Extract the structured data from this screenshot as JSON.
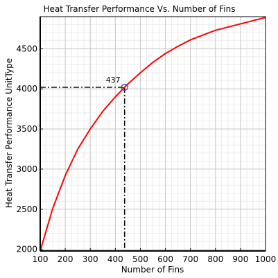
{
  "chart_data": {
    "type": "line",
    "title": "Heat Transfer Performance Vs. Number of Fins",
    "xlabel": "Number of Fins",
    "ylabel": "Heat Transfer Performance UnitType",
    "xlim": [
      100,
      1000
    ],
    "ylim": [
      1980,
      4900
    ],
    "xticks": [
      100,
      200,
      300,
      400,
      500,
      600,
      700,
      800,
      900,
      1000
    ],
    "yticks": [
      2000,
      2500,
      3000,
      3500,
      4000,
      4500
    ],
    "grid": true,
    "series": [
      {
        "color": "#ff0000",
        "x": [
          100,
          150,
          200,
          250,
          300,
          350,
          400,
          437,
          450,
          500,
          550,
          600,
          650,
          700,
          750,
          800,
          850,
          900,
          950,
          1000
        ],
        "y": [
          1980,
          2510,
          2920,
          3250,
          3500,
          3720,
          3900,
          4020,
          4060,
          4200,
          4330,
          4440,
          4530,
          4610,
          4670,
          4730,
          4770,
          4810,
          4850,
          4890
        ]
      }
    ],
    "marker": {
      "x": 437,
      "y": 4020,
      "color": "#3333cc"
    },
    "annotation": {
      "text": "437",
      "x": 437,
      "y": 4020
    },
    "reference_lines": {
      "x": 437,
      "y": 4020,
      "style": "dash-dot",
      "color": "#000000"
    }
  }
}
